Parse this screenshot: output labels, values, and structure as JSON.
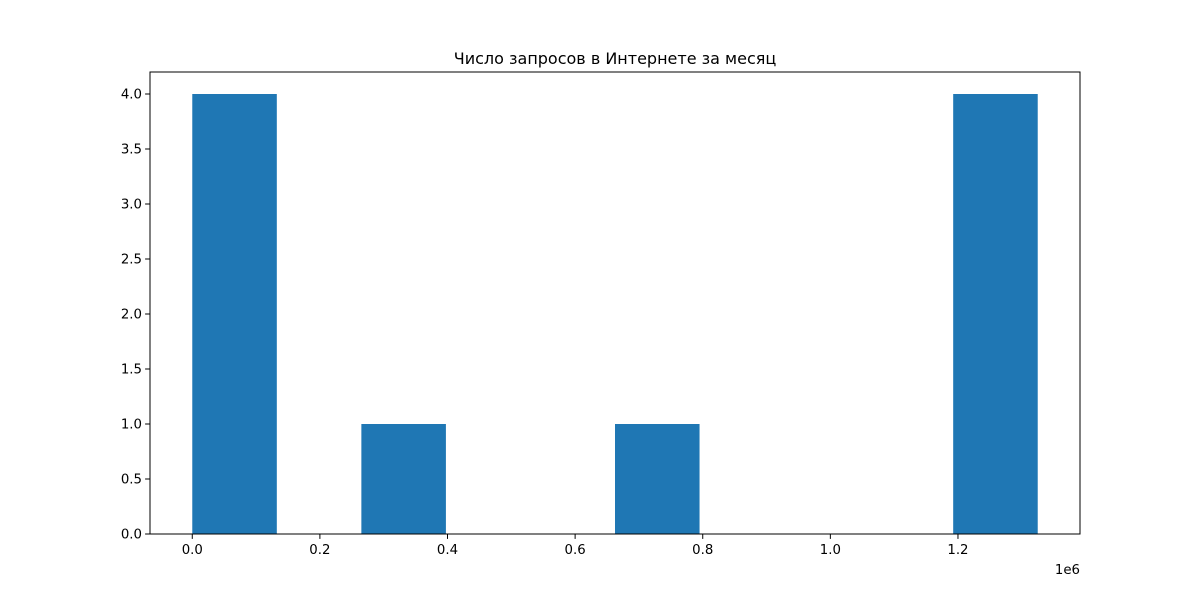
{
  "chart_data": {
    "type": "bar",
    "title": "Число запросов в Интернете за месяц",
    "xlabel": "",
    "ylabel": "",
    "x_offset_label": "1e6",
    "bars": [
      {
        "x0": 0.0,
        "x1": 0.1325,
        "count": 4
      },
      {
        "x0": 0.1325,
        "x1": 0.265,
        "count": 0
      },
      {
        "x0": 0.265,
        "x1": 0.3975,
        "count": 1
      },
      {
        "x0": 0.3975,
        "x1": 0.53,
        "count": 0
      },
      {
        "x0": 0.53,
        "x1": 0.6625,
        "count": 0
      },
      {
        "x0": 0.6625,
        "x1": 0.795,
        "count": 1
      },
      {
        "x0": 0.795,
        "x1": 0.9275,
        "count": 0
      },
      {
        "x0": 0.9275,
        "x1": 1.06,
        "count": 0
      },
      {
        "x0": 1.06,
        "x1": 1.1925,
        "count": 0
      },
      {
        "x0": 1.1925,
        "x1": 1.325,
        "count": 4
      }
    ],
    "xlim": [
      -0.06625,
      1.39125
    ],
    "ylim": [
      0,
      4.2
    ],
    "x_ticks": [
      {
        "value": 0.0,
        "label": "0.0"
      },
      {
        "value": 0.2,
        "label": "0.2"
      },
      {
        "value": 0.4,
        "label": "0.4"
      },
      {
        "value": 0.6,
        "label": "0.6"
      },
      {
        "value": 0.8,
        "label": "0.8"
      },
      {
        "value": 1.0,
        "label": "1.0"
      },
      {
        "value": 1.2,
        "label": "1.2"
      }
    ],
    "y_ticks": [
      {
        "value": 0.0,
        "label": "0.0"
      },
      {
        "value": 0.5,
        "label": "0.5"
      },
      {
        "value": 1.0,
        "label": "1.0"
      },
      {
        "value": 1.5,
        "label": "1.5"
      },
      {
        "value": 2.0,
        "label": "2.0"
      },
      {
        "value": 2.5,
        "label": "2.5"
      },
      {
        "value": 3.0,
        "label": "3.0"
      },
      {
        "value": 3.5,
        "label": "3.5"
      },
      {
        "value": 4.0,
        "label": "4.0"
      }
    ],
    "grid": false,
    "bar_color": "#1f77b4"
  }
}
